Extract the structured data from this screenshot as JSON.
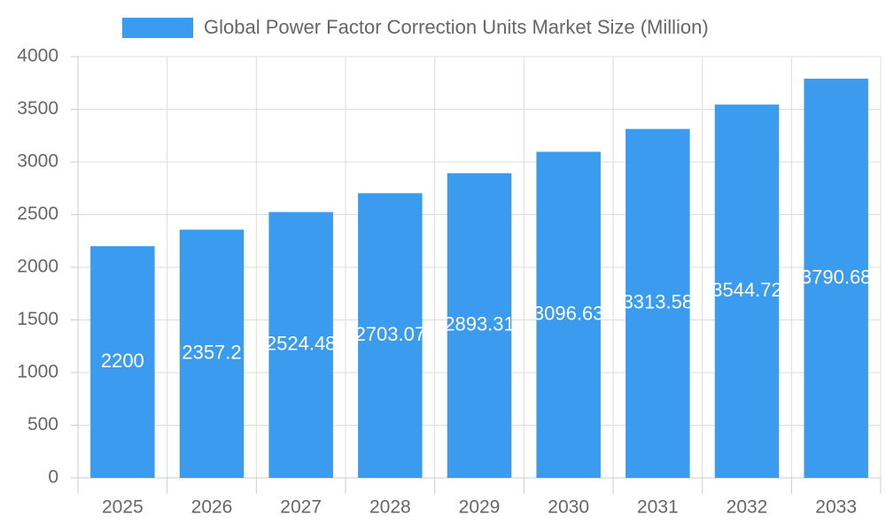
{
  "chart_data": {
    "type": "bar",
    "categories": [
      "2025",
      "2026",
      "2027",
      "2028",
      "2029",
      "2030",
      "2031",
      "2032",
      "2033"
    ],
    "series": [
      {
        "name": "Global Power Factor Correction Units Market Size (Million)",
        "color": "#3a9bef",
        "values": [
          2200,
          2357.2,
          2524.48,
          2703.07,
          2893.31,
          3096.63,
          3313.58,
          3544.72,
          3790.68
        ]
      }
    ],
    "ylim": [
      0,
      4000
    ],
    "yticks": [
      0,
      500,
      1000,
      1500,
      2000,
      2500,
      3000,
      3500,
      4000
    ],
    "grid": true,
    "legend": "top",
    "data_labels": true
  }
}
